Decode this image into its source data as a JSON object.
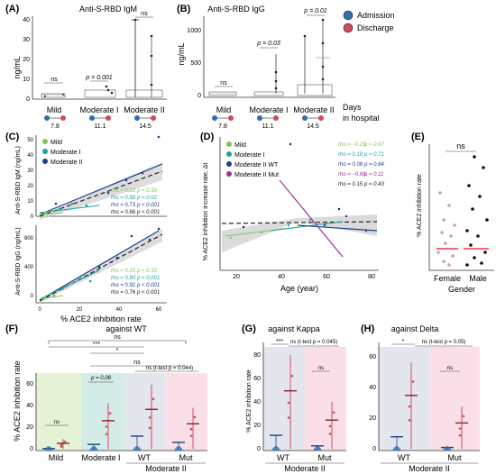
{
  "panels": {
    "A": {
      "letter": "(A)",
      "title": "Anti-S-RBD IgM",
      "ylabel": "ng/mL",
      "yticks": [
        "0",
        "10",
        "20",
        "30",
        "40"
      ],
      "groups": [
        "Mild",
        "Moderate I",
        "Moderate II"
      ],
      "days": [
        "7.8",
        "11.1",
        "14.5"
      ],
      "annotations": [
        "ns",
        "p = 0.001",
        "ns"
      ]
    },
    "B": {
      "letter": "(B)",
      "title": "Anti-S-RBD IgG",
      "ylabel": "ng/mL",
      "yticks": [
        "0",
        "500",
        "1000"
      ],
      "groups": [
        "Mild",
        "Moderate I",
        "Moderate II"
      ],
      "days": [
        "7.8",
        "11.1",
        "14.5"
      ],
      "annotations": [
        "ns",
        "p = 0.03",
        "p = 0.01"
      ],
      "legend": [
        "Admission",
        "Discharge"
      ],
      "xlabel": "Days\nin hospital"
    },
    "C": {
      "letter": "(C)",
      "legend": [
        "Mild",
        "Moderate I",
        "Moderate II"
      ],
      "top": {
        "ylabel": "Anti-S-RBD IgM (ng/mL)",
        "yticks": [
          "0",
          "10",
          "20",
          "30",
          "40",
          "50"
        ],
        "stats": [
          {
            "rho": "rho = 0.22",
            "p": "p = 0.39"
          },
          {
            "rho": "rho = 0.58",
            "p": "p = 0.02"
          },
          {
            "rho": "rho = 0.73",
            "p": "p < 0.001"
          },
          {
            "rho": "rho = 0.66",
            "p": "p < 0.001"
          }
        ]
      },
      "bottom": {
        "ylabel": "Anti-S-RBD IgG (ng/mL)",
        "yticks": [
          "0",
          "400",
          "800"
        ],
        "stats": [
          {
            "rho": "rho = 0.25",
            "p": "p = 0.33"
          },
          {
            "rho": "rho = 0.80",
            "p": "p < 0.001"
          },
          {
            "rho": "rho = 0.92",
            "p": "p < 0.001"
          },
          {
            "rho": "rho = 0.76",
            "p": "p < 0.001"
          }
        ]
      },
      "xticks": [
        "0",
        "20",
        "40",
        "60"
      ],
      "xlabel": "% ACE2 inhibition rate"
    },
    "D": {
      "letter": "(D)",
      "ylabel": "% ACE2 inhibition increase rate, Δt",
      "legend": [
        "Mild",
        "Moderate I",
        "Moderate II WT",
        "Moderate II Mut"
      ],
      "stats": [
        {
          "rho": "rho = −0.20",
          "p": "p = 0.67"
        },
        {
          "rho": "rho = 0.18",
          "p": "p = 0.71"
        },
        {
          "rho": "rho = 0.08",
          "p": "p = 0.84"
        },
        {
          "rho": "rho = −0.68",
          "p": "p = 0.11"
        },
        {
          "rho": "rho = 0.15",
          "p": "p = 0.43"
        }
      ],
      "xticks": [
        "20",
        "40",
        "60",
        "80"
      ],
      "xlabel": "Age (year)"
    },
    "E": {
      "letter": "(E)",
      "ylabel": "% ACE2 inhibition rate",
      "annotation": "ns",
      "groups": [
        "Female",
        "Male"
      ],
      "xlabel": "Gender"
    },
    "F": {
      "letter": "(F)",
      "ylabel": "% ACE2 inhibition rate",
      "yticks": [
        "0",
        "20",
        "40",
        "60"
      ],
      "title": "against WT",
      "annotations": [
        "ns",
        "***",
        "*",
        "ns",
        "p = 0.08",
        "ns",
        "ns (t-test p = 0.044)"
      ],
      "groups": [
        "Mild",
        "Moderate I",
        "WT",
        "Mut"
      ],
      "group_label": "Moderate II"
    },
    "G": {
      "letter": "(G)",
      "title": "against Kappa",
      "ylabel": "% ACE2 inhibition rate",
      "yticks": [
        "0",
        "20",
        "40",
        "60",
        "80"
      ],
      "annotations": [
        "***",
        "ns (t-test p = 0.045)",
        "ns"
      ],
      "groups": [
        "WT",
        "Mut"
      ],
      "group_label": "Moderate II"
    },
    "H": {
      "letter": "(H)",
      "title": "against Delta",
      "yticks": [
        "0",
        "20",
        "40",
        "60"
      ],
      "annotations": [
        "*",
        "ns (t-test p = 0.05)",
        "ns"
      ],
      "groups": [
        "WT",
        "Mut"
      ],
      "group_label": "Moderate II"
    }
  },
  "colors": {
    "admission": "#2f6db3",
    "discharge": "#d04a5f",
    "mild": "#7ec850",
    "mod1": "#1aa6a0",
    "mod2": "#1f3f8f",
    "mut": "#a0309a"
  },
  "chart_data": [
    {
      "type": "scatter",
      "panel": "A",
      "title": "Anti-S-RBD IgM",
      "ylabel": "ng/mL",
      "ylim": [
        0,
        40
      ],
      "categories": [
        "Mild",
        "Moderate I",
        "Moderate II"
      ],
      "series": [
        {
          "name": "Admission",
          "medians": [
            0.5,
            1,
            2
          ]
        },
        {
          "name": "Discharge",
          "medians": [
            1,
            4,
            8
          ]
        }
      ]
    },
    {
      "type": "scatter",
      "panel": "B",
      "title": "Anti-S-RBD IgG",
      "ylabel": "ng/mL",
      "ylim": [
        0,
        1200
      ],
      "categories": [
        "Mild",
        "Moderate I",
        "Moderate II"
      ],
      "series": [
        {
          "name": "Admission",
          "medians": [
            5,
            10,
            50
          ]
        },
        {
          "name": "Discharge",
          "medians": [
            10,
            250,
            580
          ]
        }
      ]
    },
    {
      "type": "scatter",
      "panel": "C-top",
      "xlabel": "% ACE2 inhibition rate",
      "ylabel": "Anti-S-RBD IgM (ng/mL)",
      "series": [
        {
          "name": "Mild",
          "slope": 0.08
        },
        {
          "name": "Moderate I",
          "slope": 0.2
        },
        {
          "name": "Moderate II",
          "slope": 0.45
        }
      ]
    },
    {
      "type": "scatter",
      "panel": "C-bottom",
      "xlabel": "% ACE2 inhibition rate",
      "ylabel": "Anti-S-RBD IgG (ng/mL)",
      "series": [
        {
          "name": "Mild",
          "slope": 3
        },
        {
          "name": "Moderate I",
          "slope": 12
        },
        {
          "name": "Moderate II",
          "slope": 16
        }
      ]
    },
    {
      "type": "scatter",
      "panel": "D",
      "xlabel": "Age (year)",
      "ylabel": "% ACE2 inhibition increase rate, Δt",
      "series": [
        {
          "name": "Mild"
        },
        {
          "name": "Moderate I"
        },
        {
          "name": "Moderate II WT"
        },
        {
          "name": "Moderate II Mut"
        }
      ]
    },
    {
      "type": "scatter",
      "panel": "E",
      "categories": [
        "Female",
        "Male"
      ],
      "ylabel": "% ACE2 inhibition rate",
      "series": [
        {
          "values": [
            1,
            2,
            3,
            5,
            6,
            8,
            10,
            12,
            15,
            18,
            20,
            25,
            30
          ]
        },
        {
          "values": [
            1,
            2,
            3,
            4,
            6,
            8,
            10,
            12,
            15,
            20,
            25,
            30,
            40,
            50,
            55,
            60
          ]
        }
      ]
    },
    {
      "type": "bar",
      "panel": "F",
      "categories": [
        "Mild",
        "Moderate I",
        "WT",
        "Mut"
      ],
      "ylim": [
        0,
        70
      ],
      "series": [
        {
          "name": "Admission",
          "values": [
            2,
            6,
            14,
            8
          ]
        },
        {
          "name": "Discharge",
          "values": [
            7,
            29,
            40,
            26
          ]
        }
      ]
    },
    {
      "type": "bar",
      "panel": "G",
      "categories": [
        "WT",
        "Mut"
      ],
      "ylim": [
        0,
        90
      ],
      "series": [
        {
          "name": "Admission",
          "values": [
            13,
            4
          ]
        },
        {
          "name": "Discharge",
          "values": [
            51,
            26
          ]
        }
      ]
    },
    {
      "type": "bar",
      "panel": "H",
      "categories": [
        "WT",
        "Mut"
      ],
      "ylim": [
        0,
        60
      ],
      "series": [
        {
          "name": "Admission",
          "values": [
            9,
            2
          ]
        },
        {
          "name": "Discharge",
          "values": [
            36,
            18
          ]
        }
      ]
    }
  ]
}
